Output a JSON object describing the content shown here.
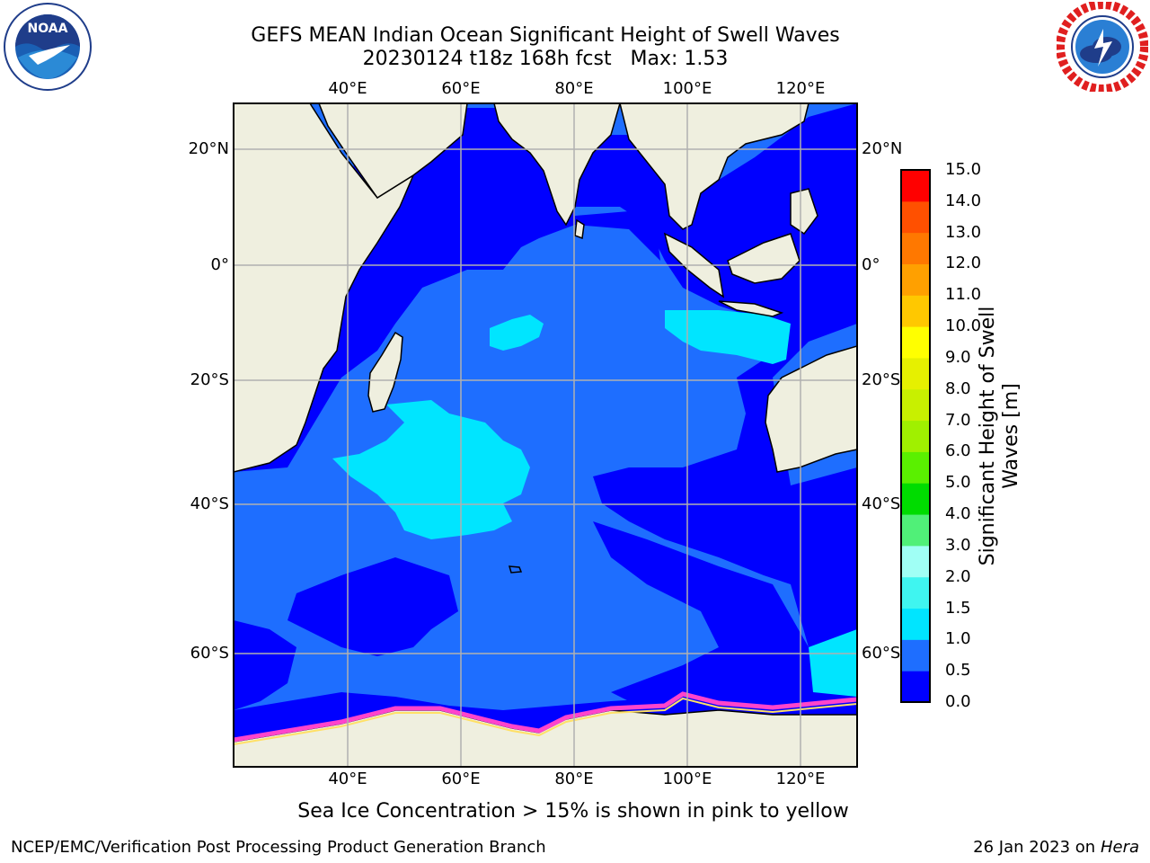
{
  "title": {
    "line1": "GEFS MEAN Indian Ocean Significant Height of Swell Waves",
    "line2": "20230124 t18z 168h fcst   Max: 1.53"
  },
  "axes": {
    "lon_ticks": [
      "40°E",
      "60°E",
      "80°E",
      "100°E",
      "120°E"
    ],
    "lat_ticks": [
      "20°N",
      "0°",
      "20°S",
      "40°S",
      "60°S"
    ]
  },
  "colorbar": {
    "label_line1": "Significant Height of Swell",
    "label_line2": "Waves [m]",
    "ticks": [
      "0.0",
      "0.5",
      "1.0",
      "1.5",
      "2.0",
      "3.0",
      "4.0",
      "5.0",
      "6.0",
      "7.0",
      "8.0",
      "9.0",
      "10.0",
      "11.0",
      "12.0",
      "13.0",
      "14.0",
      "15.0"
    ],
    "colors": [
      "#0000ff",
      "#1e6eff",
      "#00e5ff",
      "#3ff5f0",
      "#a0fff5",
      "#50f078",
      "#00dc00",
      "#5af000",
      "#a0f000",
      "#c8f000",
      "#e6f000",
      "#ffff00",
      "#ffc800",
      "#ffa000",
      "#ff7800",
      "#ff5000",
      "#ff0000"
    ]
  },
  "caption": "Sea Ice Concentration > 15% is shown in pink to yellow",
  "footer": {
    "left": "NCEP/EMC/Verification Post Processing Product Generation Branch",
    "right_date": "26 Jan 2023 on ",
    "right_host": "Hera"
  },
  "logos": {
    "left": "NOAA",
    "right": "NATIONAL WEATHER SERVICE"
  },
  "colors": {
    "land": "#efefdf",
    "ocean_low": "#0000ff",
    "ocean_mid": "#1e6eff",
    "ocean_high": "#00e5ff",
    "ice": "#ff44cc"
  }
}
